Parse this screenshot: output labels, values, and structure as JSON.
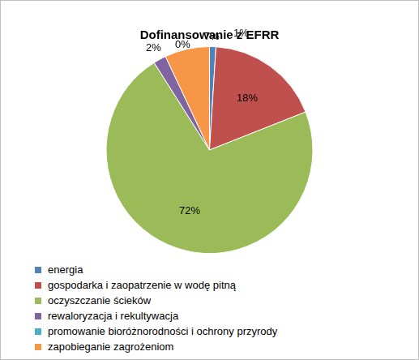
{
  "chart_data": {
    "type": "pie",
    "title": "Dofinansowanie z EFRR",
    "categories": [
      "energia",
      "gospodarka i zaopatrzenie w wodę pitną",
      "oczyszczanie ścieków",
      "rewaloryzacja i rekultywacja",
      "promowanie bioróżnorodności i ochrony przyrody",
      "zapobieganie zagrożeniom"
    ],
    "values": [
      1,
      18,
      72,
      2,
      0,
      7
    ],
    "value_labels": [
      "1%",
      "18%",
      "72%",
      "2%",
      "0%",
      "7%"
    ],
    "colors": [
      "#4f81bd",
      "#c0504d",
      "#9bbb59",
      "#8064a2",
      "#4bacc6",
      "#f79646"
    ],
    "data_labels": true,
    "legend": "bottom"
  }
}
